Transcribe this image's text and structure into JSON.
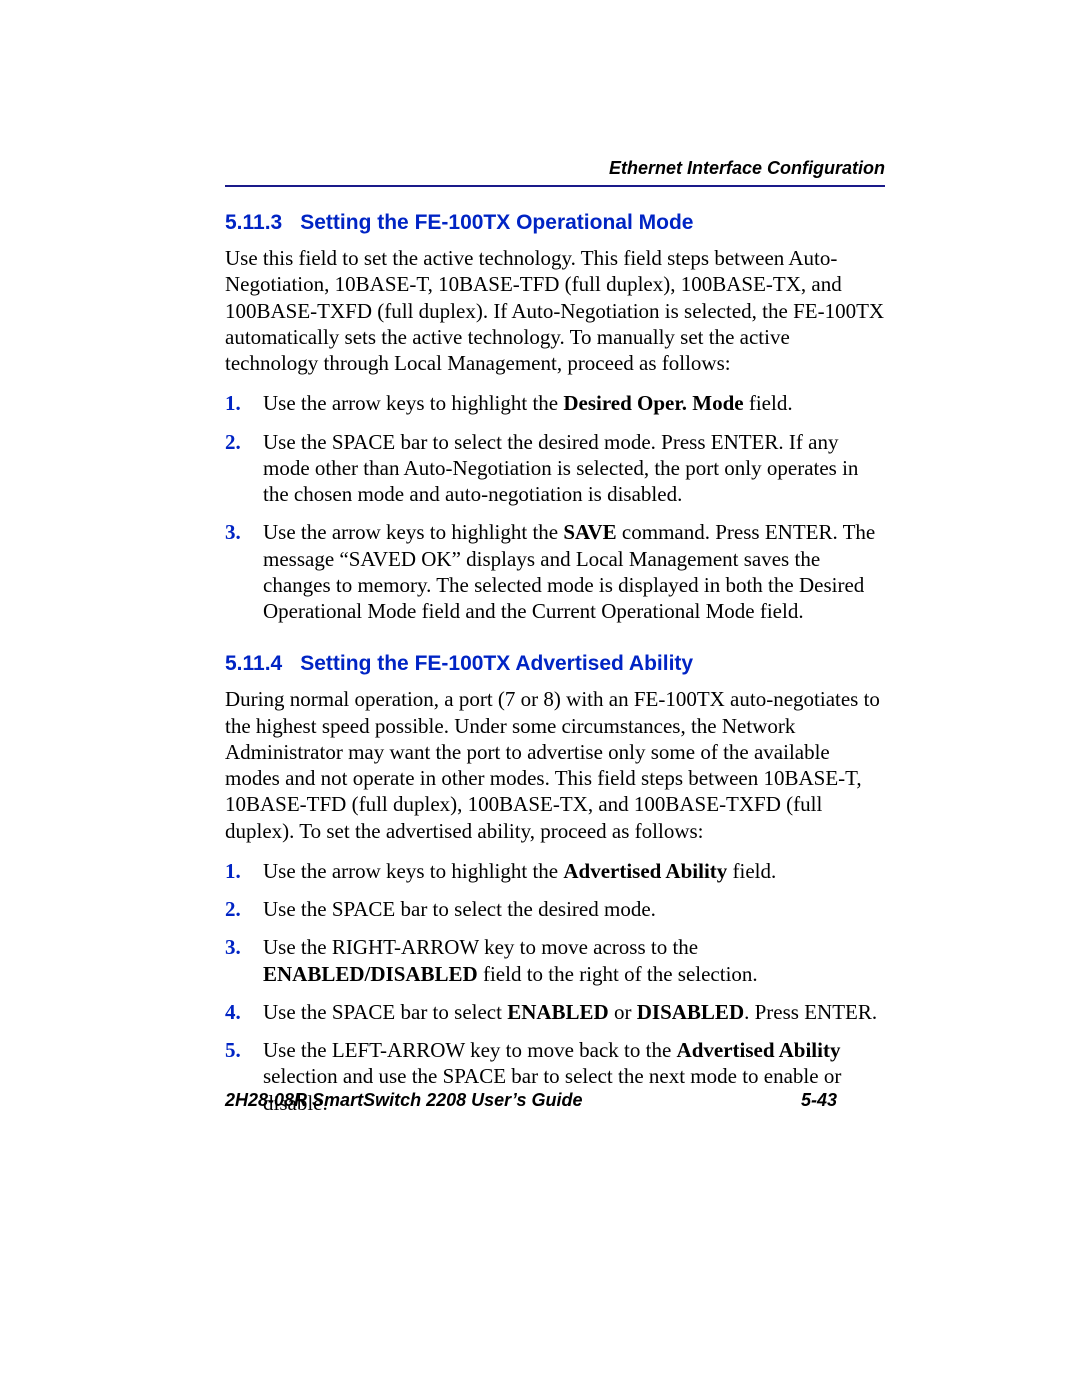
{
  "header": {
    "label": "Ethernet Interface Configuration"
  },
  "colors": {
    "heading_blue": "#0024c4",
    "rule_blue": "#1a1a8a",
    "text_black": "#000000",
    "page_bg": "#ffffff"
  },
  "typography": {
    "body_family": "Times New Roman",
    "heading_family": "Arial",
    "body_size_pt": 16,
    "heading_size_pt": 16
  },
  "sections": {
    "s1": {
      "num": "5.11.3",
      "title": "Setting the FE-100TX Operational Mode",
      "intro_parts": {
        "p1": "Use this field to set the active technology. This field steps between Auto-Negotiation, 10BASE-T, 10BASE-TFD (full duplex), 100BASE-TX, and 100BASE-TXFD (full duplex). If Auto-Negotiation is selected, the FE-100TX automatically sets the active technology. To manually set the active technology through Local Management, proceed as follows:"
      },
      "steps": {
        "i1": {
          "num": "1.",
          "a": "Use the arrow keys to highlight the ",
          "b": "Desired Oper. Mode",
          "c": " field."
        },
        "i2": {
          "num": "2.",
          "a": "Use the SPACE bar to select the desired mode. Press ENTER. If any mode other than Auto-Negotiation is selected, the port only operates in the chosen mode and auto-negotiation is disabled."
        },
        "i3": {
          "num": "3.",
          "a": "Use the arrow keys to highlight the ",
          "b": "SAVE",
          "c": " command. Press ENTER. The message “SAVED OK” displays and Local Management saves the changes to memory. The selected mode is displayed in both the Desired Operational Mode field and the Current Operational Mode field."
        }
      }
    },
    "s2": {
      "num": "5.11.4",
      "title": "Setting the FE-100TX Advertised Ability",
      "intro_parts": {
        "p1": "During normal operation, a port (7 or 8) with an FE-100TX auto-negotiates to the highest speed possible. Under some circumstances, the Network Administrator may want the port to advertise only some of the available modes and not operate in other modes. This field steps between 10BASE-T, 10BASE-TFD (full duplex), 100BASE-TX, and 100BASE-TXFD (full duplex). To set the advertised ability, proceed as follows:"
      },
      "steps": {
        "i1": {
          "num": "1.",
          "a": "Use the arrow keys to highlight the ",
          "b": "Advertised Ability",
          "c": " field."
        },
        "i2": {
          "num": "2.",
          "a": "Use the SPACE bar to select the desired mode."
        },
        "i3": {
          "num": "3.",
          "a": "Use the RIGHT-ARROW key to move across to the ",
          "b": "ENABLED/DISABLED",
          "c": " field to the right of the selection."
        },
        "i4": {
          "num": "4.",
          "a": "Use the SPACE bar to select ",
          "b": "ENABLED",
          "c": " or ",
          "d": "DISABLED",
          "e": ". Press ENTER."
        },
        "i5": {
          "num": "5.",
          "a": "Use the LEFT-ARROW key to move back to the ",
          "b": "Advertised Ability",
          "c": " selection and use the SPACE bar to select the next mode to enable or disable."
        }
      }
    }
  },
  "footer": {
    "left": "2H28-08R SmartSwitch 2208 User’s Guide",
    "right": "5-43"
  }
}
